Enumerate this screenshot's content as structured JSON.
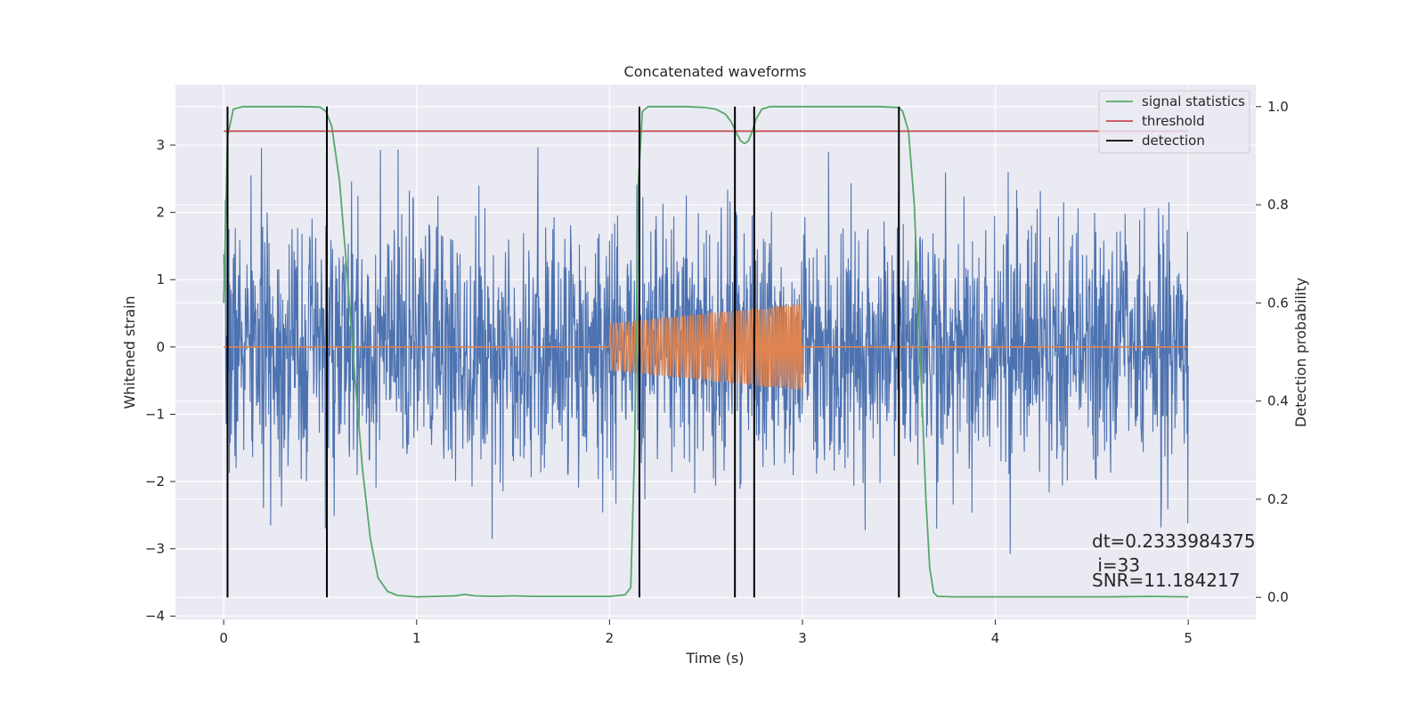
{
  "chart_data": {
    "type": "line",
    "title": "Concatenated waveforms",
    "xlabel": "Time (s)",
    "ylabel": "Whitened strain",
    "y2label": "Detection probability",
    "xlim": [
      -0.25,
      5.35
    ],
    "ylim": [
      -4.05,
      3.9
    ],
    "y2lim": [
      -0.045,
      1.045
    ],
    "xticks": [
      0,
      1,
      2,
      3,
      4,
      5
    ],
    "yticks": [
      -4,
      -3,
      -2,
      -1,
      0,
      1,
      2,
      3
    ],
    "y2ticks": [
      0.0,
      0.2,
      0.4,
      0.6,
      0.8,
      1.0
    ],
    "ytick_labels": [
      "−4",
      "−3",
      "−2",
      "−1",
      "0",
      "1",
      "2",
      "3"
    ],
    "y2tick_labels": [
      "0.0",
      "0.2",
      "0.4",
      "0.6",
      "0.8",
      "1.0"
    ],
    "grid": true,
    "legend_position": "top-right",
    "legend": [
      "signal statistics",
      "threshold",
      "detection"
    ],
    "colors": {
      "strain": "#4c72b0",
      "injection": "#dd8452",
      "signal_statistics": "#55a868",
      "threshold": "#c44e52",
      "detection": "#000000",
      "background": "#eaeaf2",
      "grid": "#ffffff"
    },
    "series": [
      {
        "name": "signal statistics",
        "axis": "right",
        "x": [
          0.0,
          0.02,
          0.05,
          0.1,
          0.2,
          0.3,
          0.4,
          0.5,
          0.53,
          0.56,
          0.6,
          0.64,
          0.68,
          0.72,
          0.76,
          0.8,
          0.85,
          0.9,
          1.0,
          1.1,
          1.2,
          1.25,
          1.3,
          1.4,
          1.5,
          1.6,
          1.8,
          2.0,
          2.08,
          2.11,
          2.13,
          2.15,
          2.17,
          2.2,
          2.3,
          2.4,
          2.5,
          2.55,
          2.6,
          2.63,
          2.66,
          2.68,
          2.7,
          2.72,
          2.74,
          2.76,
          2.79,
          2.83,
          2.9,
          3.0,
          3.2,
          3.4,
          3.5,
          3.52,
          3.55,
          3.58,
          3.6,
          3.62,
          3.64,
          3.66,
          3.68,
          3.7,
          3.8,
          4.0,
          4.2,
          4.4,
          4.6,
          4.8,
          5.0
        ],
        "y": [
          0.6,
          0.94,
          0.995,
          1.0,
          1.0,
          1.0,
          1.0,
          0.999,
          0.99,
          0.96,
          0.85,
          0.66,
          0.45,
          0.26,
          0.12,
          0.04,
          0.012,
          0.004,
          0.001,
          0.002,
          0.003,
          0.006,
          0.003,
          0.002,
          0.003,
          0.002,
          0.002,
          0.002,
          0.005,
          0.02,
          0.3,
          0.85,
          0.99,
          1.0,
          1.0,
          1.0,
          0.998,
          0.995,
          0.985,
          0.97,
          0.945,
          0.93,
          0.925,
          0.93,
          0.95,
          0.975,
          0.995,
          1.0,
          1.0,
          1.0,
          1.0,
          1.0,
          0.998,
          0.99,
          0.95,
          0.8,
          0.6,
          0.4,
          0.2,
          0.06,
          0.01,
          0.002,
          0.001,
          0.001,
          0.001,
          0.001,
          0.001,
          0.002,
          0.001
        ]
      },
      {
        "name": "threshold",
        "axis": "right",
        "x": [
          0.0,
          5.0
        ],
        "y": [
          0.95,
          0.95
        ]
      }
    ],
    "detections_x": [
      0.02,
      0.535,
      2.155,
      2.65,
      2.75,
      3.5
    ],
    "strain": {
      "x_range": [
        0.0,
        5.0
      ],
      "noise_envelope": [
        -1.0,
        1.0
      ],
      "approx_max": 3.35,
      "approx_min": -3.65
    },
    "injection": {
      "x_range": [
        2.0,
        3.0
      ],
      "amplitude_start": 0.35,
      "amplitude_end": 0.65
    },
    "annotations": [
      "dt=0.2333984375",
      " i=33",
      "SNR=11.184217"
    ]
  }
}
